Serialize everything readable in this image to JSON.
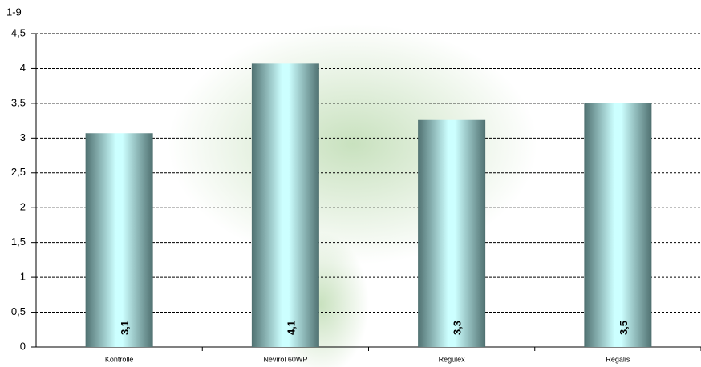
{
  "chart_data": {
    "type": "bar",
    "y_label": "1-9",
    "categories": [
      "Kontrolle",
      "Nevirol 60WP",
      "Regulex",
      "Regalis"
    ],
    "values": [
      3.07,
      4.07,
      3.26,
      3.5
    ],
    "value_labels": [
      "3,1",
      "4,1",
      "3,3",
      "3,5"
    ],
    "ylim": [
      0,
      4.5
    ],
    "yticks": [
      0,
      {
        "value": 0.5,
        "label": "0,5"
      },
      1,
      {
        "value": 1.5,
        "label": "1,5"
      },
      2,
      {
        "value": 2.5,
        "label": "2,5"
      },
      3,
      {
        "value": 3.5,
        "label": "3,5"
      },
      4,
      {
        "value": 4.5,
        "label": "4,5"
      }
    ],
    "grid": true
  }
}
